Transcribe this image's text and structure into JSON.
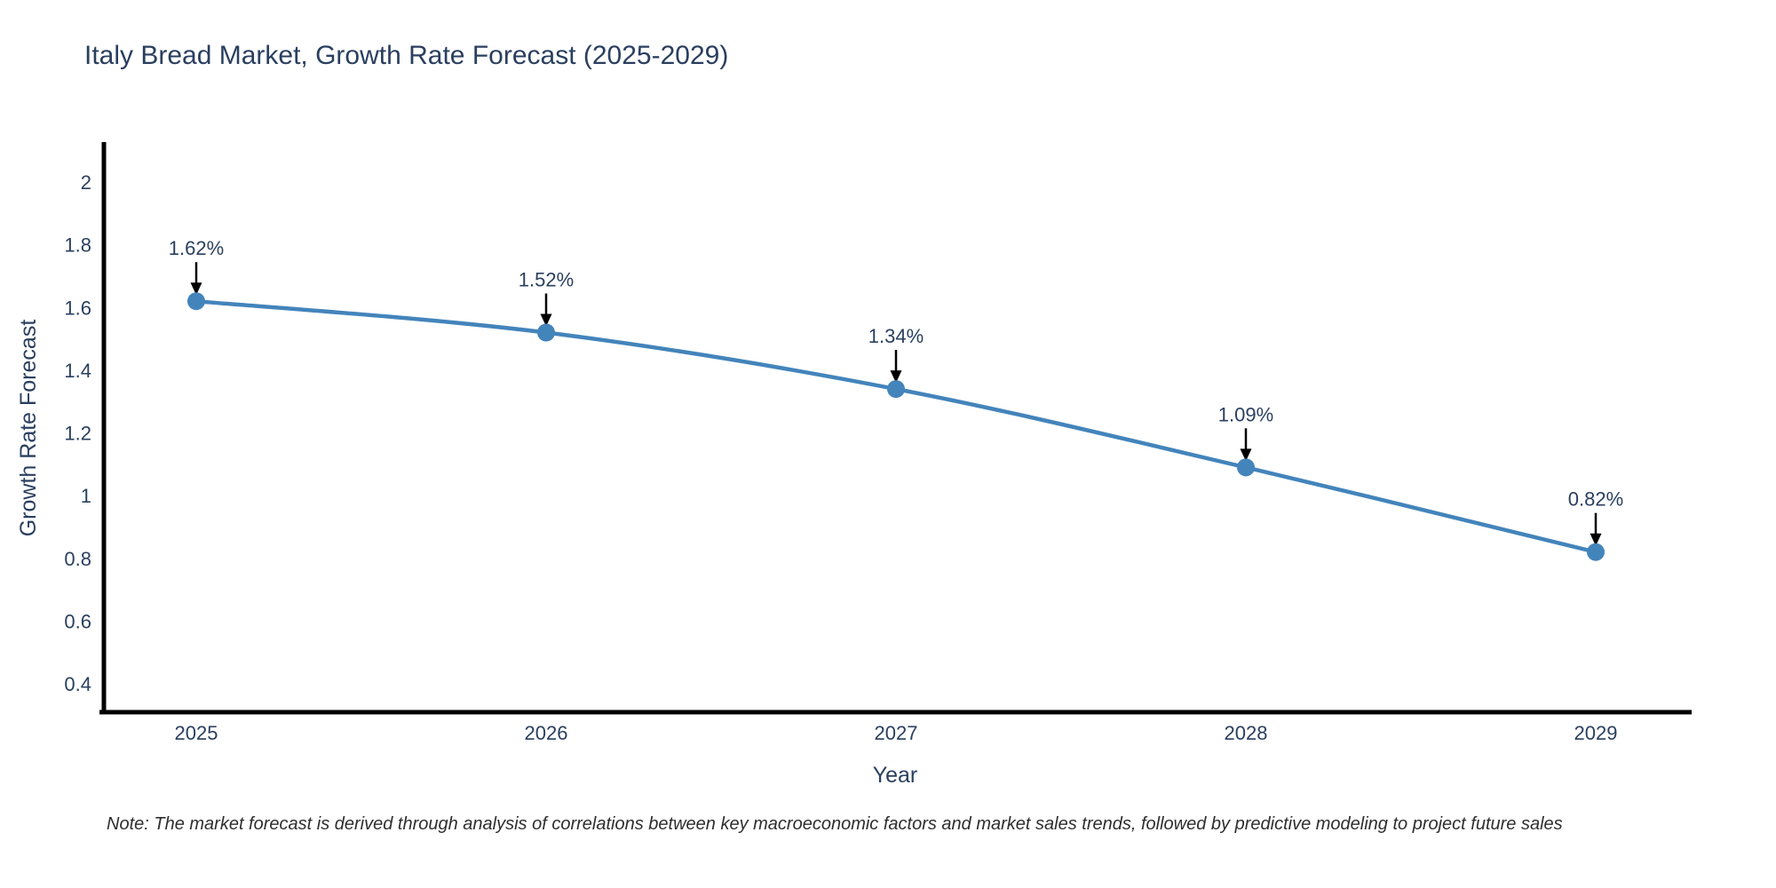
{
  "page": {
    "background": "#ffffff"
  },
  "chart_data": {
    "type": "line",
    "title": "Italy Bread Market, Growth Rate Forecast (2025-2029)",
    "xlabel": "Year",
    "ylabel": "Growth Rate Forecast",
    "x": [
      2025,
      2026,
      2027,
      2028,
      2029
    ],
    "series": [
      {
        "name": "Growth Rate Forecast",
        "values": [
          1.62,
          1.52,
          1.34,
          1.09,
          0.82
        ],
        "point_labels": [
          "1.62%",
          "1.52%",
          "1.34%",
          "1.09%",
          "0.82%"
        ]
      }
    ],
    "x_tick_labels": [
      "2025",
      "2026",
      "2027",
      "2028",
      "2029"
    ],
    "y_ticks": [
      0.4,
      0.6,
      0.8,
      1,
      1.2,
      1.4,
      1.6,
      1.8,
      2
    ],
    "y_tick_labels": [
      "0.4",
      "0.6",
      "0.8",
      "1",
      "1.2",
      "1.4",
      "1.6",
      "1.8",
      "2"
    ],
    "xlim": [
      2024.72,
      2029.27
    ],
    "ylim": [
      0.31,
      2.12
    ],
    "grid": false,
    "legend_position": "none",
    "line_shape": "spline",
    "line_color": "#4384bb",
    "marker_color": "#4384bb",
    "annotation_arrow_color": "#000000",
    "text_color": "#2a3f5f",
    "axis_color": "#000000"
  },
  "note": {
    "text": "Note: The market forecast is derived through analysis of correlations between key macroeconomic factors and market sales trends, followed by predictive modeling to project future sales"
  }
}
